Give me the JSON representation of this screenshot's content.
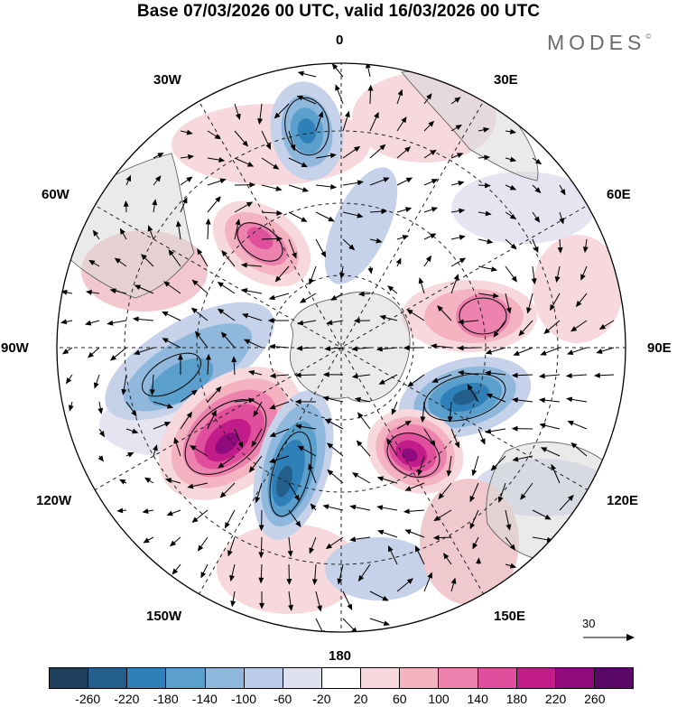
{
  "title": "Base 07/03/2026 00 UTC, valid 16/03/2026 00 UTC",
  "brand": {
    "name": "MODES",
    "mark": "©"
  },
  "longitude_labels": {
    "n0": "0",
    "e30": "30E",
    "e60": "60E",
    "e90": "90E",
    "e120": "120E",
    "e150": "150E",
    "s180": "180",
    "w150": "150W",
    "w120": "120W",
    "w90": "90W",
    "w60": "60W",
    "w30": "30W"
  },
  "reference_vector": {
    "label": "30"
  },
  "colorbar": {
    "ticks": [
      "-260",
      "-220",
      "-180",
      "-140",
      "-100",
      "-60",
      "-20",
      "20",
      "60",
      "100",
      "140",
      "180",
      "220",
      "260"
    ],
    "colors": [
      "#1e3f5c",
      "#245f8c",
      "#2f80b8",
      "#5b9fcc",
      "#8fb8dc",
      "#b9cbe6",
      "#dfe1f1",
      "#ffffff",
      "#f7d9dd",
      "#f3b3c1",
      "#ec82ad",
      "#df4f9c",
      "#c21c8a",
      "#8f0b7d",
      "#5a0868"
    ]
  },
  "anomalies": [
    {
      "name": "negative-center-north",
      "value": -200
    },
    {
      "name": "positive-center-west",
      "value": 180
    },
    {
      "name": "negative-center-east",
      "value": -220
    },
    {
      "name": "positive-center-northeast",
      "value": 140
    },
    {
      "name": "positive-center-southwest",
      "value": 240
    },
    {
      "name": "negative-center-south",
      "value": -220
    },
    {
      "name": "positive-center-southeast",
      "value": 240
    },
    {
      "name": "negative-center-west",
      "value": -160
    }
  ]
}
